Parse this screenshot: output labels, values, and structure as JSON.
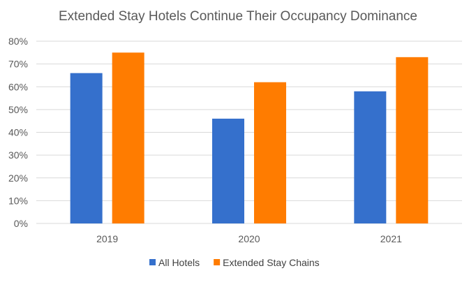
{
  "chart_data": {
    "type": "bar",
    "title": "Extended Stay Hotels Continue Their Occupancy Dominance",
    "categories": [
      "2019",
      "2020",
      "2021"
    ],
    "series": [
      {
        "name": "All Hotels",
        "values": [
          66,
          46,
          58
        ],
        "color": "#3570cc"
      },
      {
        "name": "Extended Stay Chains",
        "values": [
          75,
          62,
          73
        ],
        "color": "#ff7c00"
      }
    ],
    "ylim": [
      0,
      80
    ],
    "yticks": [
      0,
      10,
      20,
      30,
      40,
      50,
      60,
      70,
      80
    ],
    "ytick_labels": [
      "0%",
      "10%",
      "20%",
      "30%",
      "40%",
      "50%",
      "60%",
      "70%",
      "80%"
    ],
    "xlabel": "",
    "ylabel": "",
    "grid": true,
    "legend": "bottom"
  }
}
